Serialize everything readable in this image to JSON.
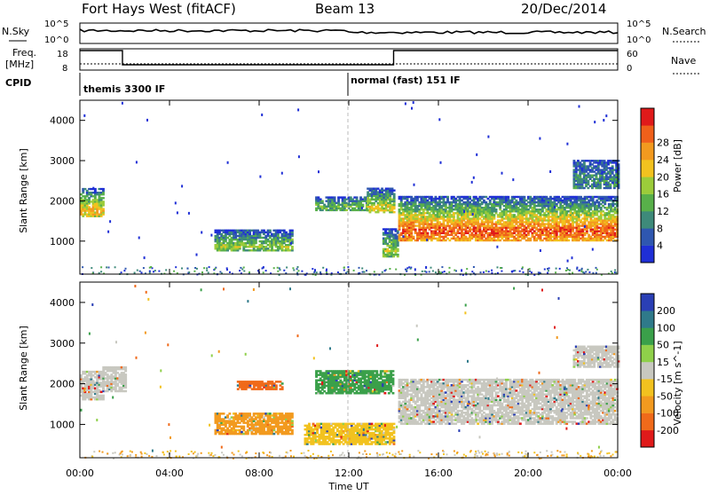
{
  "header": {
    "station": "Fort Hays West (fitACF)",
    "beam": "Beam 13",
    "date": "20/Dec/2014"
  },
  "aux_panels": {
    "nsky_label": "N.Sky",
    "nsky_ticks": [
      "10^5",
      "10^0"
    ],
    "nsearch_label": "N.Search",
    "nsearch_ticks": [
      "10^5",
      "10^0"
    ],
    "freq_label_1": "Freq.",
    "freq_label_2": "[MHz]",
    "freq_ticks": [
      "18",
      "8"
    ],
    "nave_label": "Nave",
    "nave_ticks": [
      "60",
      "0"
    ],
    "cpid_label": "CPID",
    "cpid_modes": [
      {
        "name": "themis 3300 IF",
        "start_hour": 0
      },
      {
        "name": "normal (fast) 151 IF",
        "start_hour": 12
      }
    ]
  },
  "chart_data": [
    {
      "type": "heatmap",
      "panel": "power",
      "ylabel": "Slant Range [km]",
      "yticks": [
        "1000",
        "2000",
        "3000",
        "4000"
      ],
      "ylim": [
        180,
        4500
      ],
      "xlim": [
        0,
        24
      ],
      "colorbar_label": "Power [dB]",
      "colorbar_ticks": [
        "4",
        "8",
        "12",
        "16",
        "20",
        "24",
        "28"
      ],
      "colorbar_range": [
        0,
        30
      ],
      "colors": [
        "#1f2fd6",
        "#2f57b0",
        "#3e8a7a",
        "#58b04a",
        "#9ccc3a",
        "#f2c21f",
        "#f29a1f",
        "#f0601a",
        "#e01a1a"
      ],
      "regions": [
        {
          "t0": 0.0,
          "t1": 1.0,
          "r0": 1600,
          "r1": 2300,
          "level": 0.55
        },
        {
          "t0": 6.0,
          "t1": 9.5,
          "r0": 750,
          "r1": 1250,
          "level": 0.35
        },
        {
          "t0": 10.5,
          "t1": 12.8,
          "r0": 1750,
          "r1": 2100,
          "level": 0.3
        },
        {
          "t0": 12.8,
          "t1": 14.0,
          "r0": 1700,
          "r1": 2300,
          "level": 0.45
        },
        {
          "t0": 13.5,
          "t1": 14.2,
          "r0": 600,
          "r1": 1300,
          "level": 0.4
        },
        {
          "t0": 14.2,
          "t1": 24.0,
          "r0": 1000,
          "r1": 2100,
          "level": 0.75
        },
        {
          "t0": 22.0,
          "t1": 24.0,
          "r0": 2300,
          "r1": 3000,
          "level": 0.15
        }
      ]
    },
    {
      "type": "heatmap",
      "panel": "velocity",
      "xlabel": "Time UT",
      "ylabel": "Slant Range [km]",
      "yticks": [
        "1000",
        "2000",
        "3000",
        "4000"
      ],
      "ylim": [
        180,
        4500
      ],
      "xlim": [
        0,
        24
      ],
      "xticks": [
        "00:00",
        "04:00",
        "08:00",
        "12:00",
        "16:00",
        "20:00",
        "00:00"
      ],
      "colorbar_label": "Velocity [m s^-1]",
      "colorbar_ticks": [
        "200",
        "100",
        "50",
        "15",
        "-15",
        "-50",
        "-100",
        "-200"
      ],
      "colorbar_range": [
        -250,
        250
      ],
      "colors": [
        "#2a3fb5",
        "#2f7a8a",
        "#3aa04a",
        "#8fd04a",
        "#c8c8c0",
        "#f2c21f",
        "#f29a1f",
        "#f06a1a",
        "#e01a1a"
      ],
      "regions": [
        {
          "t0": 0.0,
          "t1": 1.0,
          "r0": 1600,
          "r1": 2300,
          "color": "#c8c8c0"
        },
        {
          "t0": 1.0,
          "t1": 2.0,
          "r0": 1800,
          "r1": 2400,
          "color": "#c8c8c0"
        },
        {
          "t0": 6.0,
          "t1": 9.5,
          "r0": 750,
          "r1": 1250,
          "color": "#f29a1f"
        },
        {
          "t0": 7.0,
          "t1": 9.0,
          "r0": 1850,
          "r1": 2050,
          "color": "#f06a1a"
        },
        {
          "t0": 10.5,
          "t1": 14.0,
          "r0": 1750,
          "r1": 2300,
          "color": "#3aa04a"
        },
        {
          "t0": 10.0,
          "t1": 14.0,
          "r0": 500,
          "r1": 1000,
          "color": "#f2c21f"
        },
        {
          "t0": 14.2,
          "t1": 24.0,
          "r0": 1000,
          "r1": 2100,
          "color": "#c8c8c0"
        },
        {
          "t0": 22.0,
          "t1": 24.0,
          "r0": 2400,
          "r1": 2900,
          "color": "#c8c8c0"
        }
      ]
    }
  ]
}
